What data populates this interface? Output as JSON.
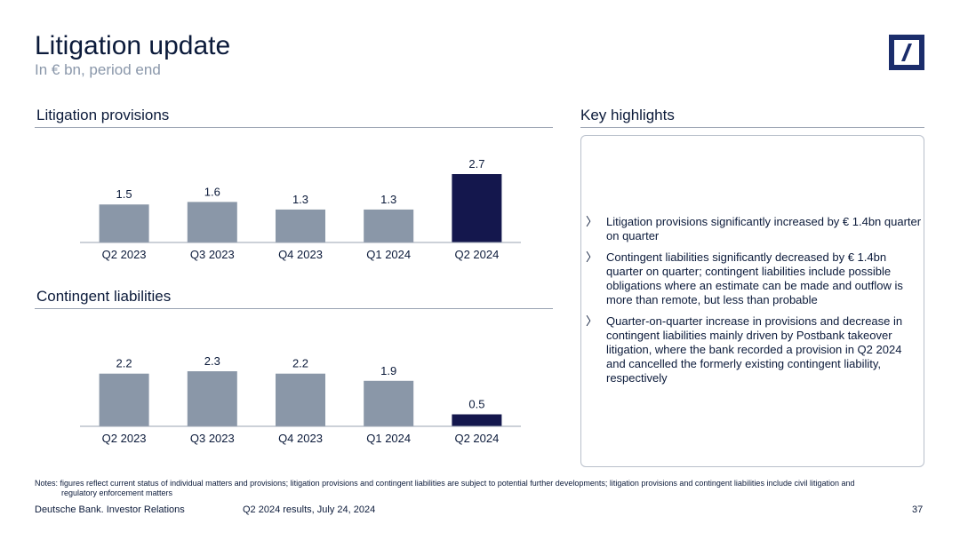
{
  "header": {
    "title": "Litigation update",
    "subtitle": "In € bn, period end"
  },
  "logo": {
    "icon": "deutsche-bank-logo-icon",
    "color": "#1b2d6b"
  },
  "sections": {
    "provisions_title": "Litigation provisions",
    "contingent_title": "Contingent liabilities",
    "highlights_title": "Key highlights"
  },
  "chart_data": [
    {
      "type": "bar",
      "title": "Litigation provisions",
      "categories": [
        "Q2 2023",
        "Q3 2023",
        "Q4 2023",
        "Q1 2024",
        "Q2 2024"
      ],
      "values": [
        1.5,
        1.6,
        1.3,
        1.3,
        2.7
      ],
      "labels": [
        "1.5",
        "1.6",
        "1.3",
        "1.3",
        "2.7"
      ],
      "highlight_index": 4,
      "ylim": [
        0,
        2.7
      ],
      "colors": {
        "default": "#8a97a8",
        "highlight": "#14174d"
      }
    },
    {
      "type": "bar",
      "title": "Contingent liabilities",
      "categories": [
        "Q2 2023",
        "Q3 2023",
        "Q4 2023",
        "Q1 2024",
        "Q2 2024"
      ],
      "values": [
        2.2,
        2.3,
        2.2,
        1.9,
        0.5
      ],
      "labels": [
        "2.2",
        "2.3",
        "2.2",
        "1.9",
        "0.5"
      ],
      "highlight_index": 4,
      "ylim": [
        0,
        2.3
      ],
      "colors": {
        "default": "#8a97a8",
        "highlight": "#14174d"
      }
    }
  ],
  "highlights": {
    "marker": "〉",
    "items": [
      "Litigation provisions significantly increased by € 1.4bn quarter on quarter",
      "Contingent liabilities significantly decreased by € 1.4bn quarter on quarter; contingent liabilities include possible obligations where an estimate can be made and outflow is more than remote, but less than probable",
      "Quarter-on-quarter increase in provisions and decrease in contingent liabilities mainly driven by Postbank takeover litigation, where the bank recorded a provision in Q2 2024 and cancelled the formerly existing contingent liability, respectively"
    ]
  },
  "notes": {
    "line1": "Notes: figures reflect current status of individual matters and provisions; litigation provisions and contingent liabilities are subject to potential further developments; litigation provisions and contingent liabilities include civil litigation and",
    "line2": "regulatory enforcement matters"
  },
  "footer": {
    "company": "Deutsche Bank. Investor Relations",
    "event": "Q2 2024 results, July 24, 2024",
    "page": "37"
  }
}
